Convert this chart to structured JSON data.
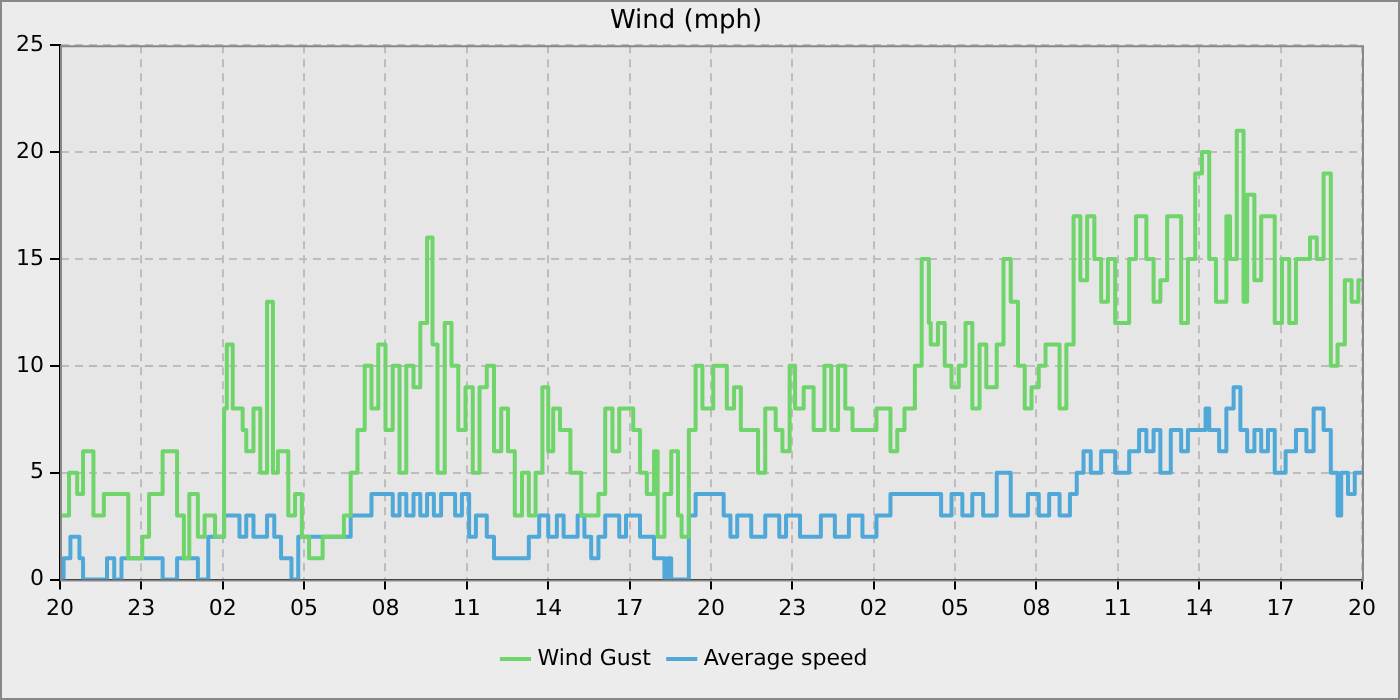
{
  "chart_data": {
    "type": "step",
    "title": "Wind (mph)",
    "xlim": [
      "--01-01T20:00",
      "--01-03T20:00"
    ],
    "ylim": [
      0,
      25
    ],
    "xticks": [
      {
        "value": "--01-01T20:00",
        "label": "20"
      },
      {
        "value": "--01-01T23:00",
        "label": "23"
      },
      {
        "value": "--01-02T02:00",
        "label": "02"
      },
      {
        "value": "--01-02T05:00",
        "label": "05"
      },
      {
        "value": "--01-02T08:00",
        "label": "08"
      },
      {
        "value": "--01-02T11:00",
        "label": "11"
      },
      {
        "value": "--01-02T14:00",
        "label": "14"
      },
      {
        "value": "--01-02T17:00",
        "label": "17"
      },
      {
        "value": "--01-02T20:00",
        "label": "20"
      },
      {
        "value": "--01-02T23:00",
        "label": "23"
      },
      {
        "value": "--01-03T02:00",
        "label": "02"
      },
      {
        "value": "--01-03T05:00",
        "label": "05"
      },
      {
        "value": "--01-03T08:00",
        "label": "08"
      },
      {
        "value": "--01-03T11:00",
        "label": "11"
      },
      {
        "value": "--01-03T14:00",
        "label": "14"
      },
      {
        "value": "--01-03T17:00",
        "label": "17"
      },
      {
        "value": "--01-03T20:00",
        "label": "20"
      }
    ],
    "yticks": [
      0,
      5,
      10,
      15,
      20,
      25
    ],
    "grid": true,
    "legend": "bottom",
    "marker": "none",
    "line_style": "solid",
    "series": [
      {
        "name": "Wind Gust",
        "color": "#6fd46a",
        "x": [
          "--01-01T20:00",
          "--01-01T20:20",
          "--01-01T20:38",
          "--01-01T20:51",
          "--01-01T21:14",
          "--01-01T21:37",
          "--01-01T22:31",
          "--01-01T23:02",
          "--01-01T23:17",
          "--01-01T23:47",
          "--01-02T00:19",
          "--01-02T00:34",
          "--01-02T00:46",
          "--01-02T01:05",
          "--01-02T01:20",
          "--01-02T01:43",
          "--01-02T02:03",
          "--01-02T02:09",
          "--01-02T02:22",
          "--01-02T02:44",
          "--01-02T02:52",
          "--01-02T03:08",
          "--01-02T03:23",
          "--01-02T03:38",
          "--01-02T03:51",
          "--01-02T04:02",
          "--01-02T04:25",
          "--01-02T04:40",
          "--01-02T04:55",
          "--01-02T05:11",
          "--01-02T05:41",
          "--01-02T06:28",
          "--01-02T06:43",
          "--01-02T06:58",
          "--01-02T07:14",
          "--01-02T07:29",
          "--01-02T07:44",
          "--01-02T08:00",
          "--01-02T08:16",
          "--01-02T08:31",
          "--01-02T08:46",
          "--01-02T09:02",
          "--01-02T09:17",
          "--01-02T09:32",
          "--01-02T09:44",
          "--01-02T09:55",
          "--01-02T10:11",
          "--01-02T10:26",
          "--01-02T10:41",
          "--01-02T10:57",
          "--01-02T11:13",
          "--01-02T11:28",
          "--01-02T11:44",
          "--01-02T12:00",
          "--01-02T12:16",
          "--01-02T12:31",
          "--01-02T12:46",
          "--01-02T13:02",
          "--01-02T13:17",
          "--01-02T13:32",
          "--01-02T13:47",
          "--01-02T14:00",
          "--01-02T14:11",
          "--01-02T14:26",
          "--01-02T14:49",
          "--01-02T15:13",
          "--01-02T15:51",
          "--01-02T16:06",
          "--01-02T16:22",
          "--01-02T16:37",
          "--01-02T17:08",
          "--01-02T17:23",
          "--01-02T17:38",
          "--01-02T17:54",
          "--01-02T18:02",
          "--01-02T18:17",
          "--01-02T18:32",
          "--01-02T18:47",
          "--01-02T18:55",
          "--01-02T19:11",
          "--01-02T19:26",
          "--01-02T19:41",
          "--01-02T20:05",
          "--01-02T20:35",
          "--01-02T20:51",
          "--01-02T21:06",
          "--01-02T21:44",
          "--01-02T22:00",
          "--01-02T22:23",
          "--01-02T22:38",
          "--01-02T22:54",
          "--01-02T23:06",
          "--01-02T23:25",
          "--01-02T23:47",
          "--01-03T00:11",
          "--01-03T00:26",
          "--01-03T00:41",
          "--01-03T00:57",
          "--01-03T01:13",
          "--01-03T02:06",
          "--01-03T02:37",
          "--01-03T02:52",
          "--01-03T03:08",
          "--01-03T03:31",
          "--01-03T03:46",
          "--01-03T04:02",
          "--01-03T04:06",
          "--01-03T04:22",
          "--01-03T04:37",
          "--01-03T04:52",
          "--01-03T05:08",
          "--01-03T05:23",
          "--01-03T05:38",
          "--01-03T05:54",
          "--01-03T06:09",
          "--01-03T06:32",
          "--01-03T06:47",
          "--01-03T07:03",
          "--01-03T07:19",
          "--01-03T07:34",
          "--01-03T07:49",
          "--01-03T08:05",
          "--01-03T08:20",
          "--01-03T08:51",
          "--01-03T09:06",
          "--01-03T09:22",
          "--01-03T09:37",
          "--01-03T09:52",
          "--01-03T10:08",
          "--01-03T10:23",
          "--01-03T10:38",
          "--01-03T10:54",
          "--01-03T11:25",
          "--01-03T11:40",
          "--01-03T12:03",
          "--01-03T12:19",
          "--01-03T12:34",
          "--01-03T12:49",
          "--01-03T13:20",
          "--01-03T13:35",
          "--01-03T13:51",
          "--01-03T14:06",
          "--01-03T14:22",
          "--01-03T14:37",
          "--01-03T15:00",
          "--01-03T15:08",
          "--01-03T15:23",
          "--01-03T15:38",
          "--01-03T15:46",
          "--01-03T16:02",
          "--01-03T16:17",
          "--01-03T16:47",
          "--01-03T17:03",
          "--01-03T17:19",
          "--01-03T17:34",
          "--01-03T18:05",
          "--01-03T18:20",
          "--01-03T18:35",
          "--01-03T18:51",
          "--01-03T19:06",
          "--01-03T19:22",
          "--01-03T19:37",
          "--01-03T19:52",
          "--01-03T20:00"
        ],
        "values": [
          4,
          3,
          5,
          4,
          6,
          3,
          4,
          1,
          2,
          4,
          6,
          3,
          1,
          4,
          2,
          3,
          2,
          8,
          11,
          8,
          7,
          6,
          8,
          5,
          13,
          5,
          6,
          3,
          4,
          2,
          1,
          2,
          3,
          5,
          7,
          10,
          8,
          11,
          7,
          10,
          5,
          10,
          9,
          12,
          16,
          11,
          5,
          12,
          10,
          7,
          9,
          5,
          9,
          10,
          6,
          8,
          6,
          3,
          5,
          3,
          5,
          9,
          6,
          8,
          7,
          5,
          3,
          4,
          8,
          6,
          8,
          7,
          5,
          4,
          6,
          2,
          4,
          6,
          3,
          2,
          7,
          10,
          8,
          10,
          8,
          9,
          7,
          5,
          8,
          7,
          6,
          10,
          8,
          9,
          7,
          10,
          7,
          10,
          8,
          7,
          8,
          6,
          7,
          8,
          10,
          15,
          12,
          11,
          12,
          10,
          9,
          10,
          12,
          8,
          11,
          9,
          11,
          15,
          13,
          10,
          8,
          9,
          10,
          11,
          8,
          11,
          17,
          14,
          17,
          15,
          13,
          15,
          12,
          15,
          17,
          15,
          13,
          14,
          17,
          12,
          15,
          19,
          20,
          15,
          13,
          17,
          15,
          21,
          13,
          18,
          14,
          17,
          12,
          15,
          12,
          15,
          16,
          15,
          19,
          10,
          11,
          14,
          13,
          14
        ]
      },
      {
        "name": "Average speed",
        "color": "#4fa8d8",
        "x": [
          "--01-01T20:00",
          "--01-01T20:08",
          "--01-01T20:23",
          "--01-01T20:43",
          "--01-01T20:51",
          "--01-01T21:44",
          "--01-01T22:00",
          "--01-01T22:16",
          "--01-01T23:47",
          "--01-02T00:19",
          "--01-02T01:05",
          "--01-02T01:28",
          "--01-02T02:03",
          "--01-02T02:37",
          "--01-02T02:52",
          "--01-02T03:08",
          "--01-02T03:38",
          "--01-02T03:54",
          "--01-02T04:09",
          "--01-02T04:32",
          "--01-02T04:47",
          "--01-02T06:43",
          "--01-02T07:29",
          "--01-02T08:16",
          "--01-02T08:31",
          "--01-02T08:46",
          "--01-02T09:02",
          "--01-02T09:17",
          "--01-02T09:32",
          "--01-02T09:47",
          "--01-02T10:03",
          "--01-02T10:34",
          "--01-02T10:49",
          "--01-02T11:05",
          "--01-02T11:20",
          "--01-02T11:35",
          "--01-02T11:44",
          "--01-02T12:00",
          "--01-02T13:17",
          "--01-02T13:40",
          "--01-02T14:00",
          "--01-02T14:19",
          "--01-02T14:34",
          "--01-02T15:05",
          "--01-02T15:20",
          "--01-02T15:35",
          "--01-02T15:51",
          "--01-02T16:06",
          "--01-02T16:37",
          "--01-02T16:52",
          "--01-02T17:23",
          "--01-02T17:54",
          "--01-02T18:17",
          "--01-02T18:24",
          "--01-02T18:32",
          "--01-02T19:11",
          "--01-02T19:26",
          "--01-02T20:28",
          "--01-02T20:43",
          "--01-02T20:58",
          "--01-02T21:29",
          "--01-02T22:00",
          "--01-02T22:31",
          "--01-02T22:46",
          "--01-02T23:17",
          "--01-03T00:03",
          "--01-03T00:34",
          "--01-03T01:05",
          "--01-03T01:35",
          "--01-03T02:06",
          "--01-03T02:37",
          "--01-03T03:31",
          "--01-03T04:29",
          "--01-03T04:52",
          "--01-03T05:16",
          "--01-03T05:38",
          "--01-03T06:02",
          "--01-03T06:32",
          "--01-03T07:03",
          "--01-03T07:41",
          "--01-03T08:05",
          "--01-03T08:28",
          "--01-03T08:51",
          "--01-03T09:14",
          "--01-03T09:29",
          "--01-03T09:44",
          "--01-03T10:00",
          "--01-03T10:23",
          "--01-03T10:54",
          "--01-03T11:25",
          "--01-03T11:47",
          "--01-03T12:03",
          "--01-03T12:19",
          "--01-03T12:34",
          "--01-03T12:57",
          "--01-03T13:20",
          "--01-03T13:35",
          "--01-03T14:14",
          "--01-03T14:22",
          "--01-03T14:44",
          "--01-03T15:00",
          "--01-03T15:16",
          "--01-03T15:31",
          "--01-03T15:46",
          "--01-03T16:02",
          "--01-03T16:17",
          "--01-03T16:32",
          "--01-03T16:47",
          "--01-03T17:11",
          "--01-03T17:34",
          "--01-03T17:57",
          "--01-03T18:13",
          "--01-03T18:35",
          "--01-03T18:51",
          "--01-03T19:06",
          "--01-03T19:14",
          "--01-03T19:29",
          "--01-03T19:44",
          "--01-03T20:00"
        ],
        "values": [
          1,
          0,
          1,
          2,
          1,
          0,
          1,
          0,
          1,
          0,
          1,
          0,
          2,
          3,
          2,
          3,
          2,
          3,
          2,
          1,
          0,
          2,
          3,
          4,
          3,
          4,
          3,
          4,
          3,
          4,
          3,
          4,
          3,
          4,
          2,
          3,
          3,
          2,
          1,
          2,
          3,
          2,
          3,
          2,
          3,
          2,
          1,
          2,
          3,
          2,
          3,
          2,
          1,
          0,
          1,
          0,
          3,
          4,
          3,
          2,
          3,
          2,
          3,
          2,
          3,
          2,
          3,
          2,
          3,
          2,
          3,
          4,
          4,
          3,
          4,
          3,
          4,
          3,
          5,
          3,
          4,
          3,
          4,
          3,
          4,
          5,
          6,
          5,
          6,
          5,
          6,
          7,
          6,
          7,
          5,
          7,
          6,
          7,
          8,
          7,
          6,
          8,
          9,
          7,
          6,
          7,
          6,
          7,
          5,
          6,
          7,
          6,
          8,
          7,
          5,
          3,
          5,
          4,
          5
        ]
      }
    ]
  }
}
